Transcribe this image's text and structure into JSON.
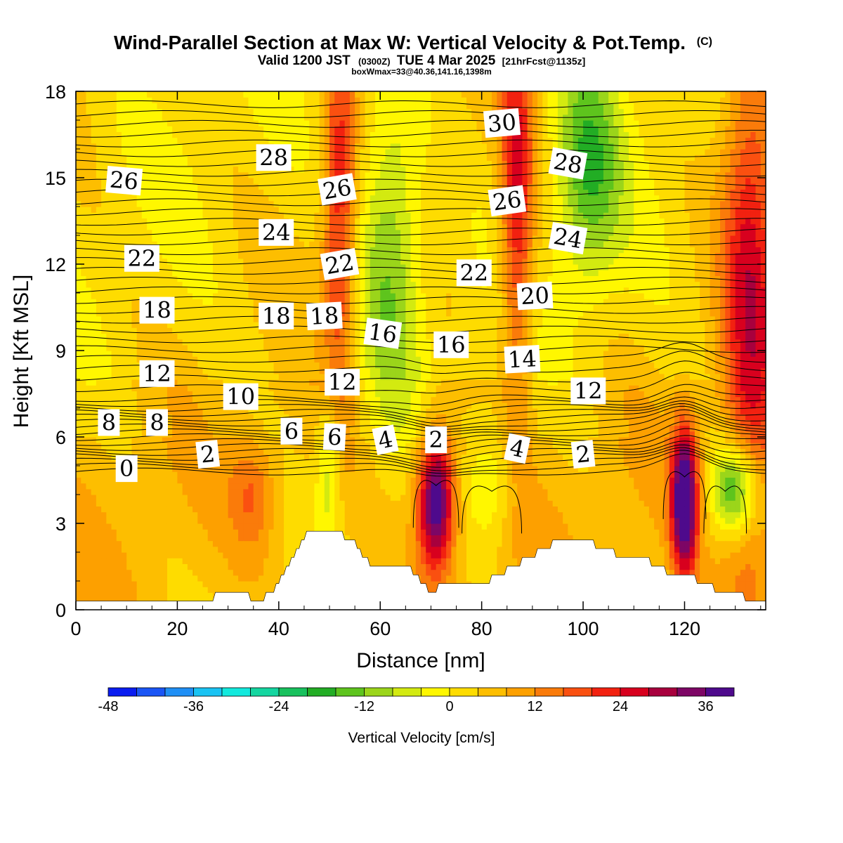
{
  "title": {
    "main": "Wind-Parallel Section at Max W: Vertical Velocity & Pot.Temp.",
    "copyright": "(C)",
    "valid_prefix": "Valid 1200 JST",
    "valid_utc": "(0300Z)",
    "valid_date": "TUE 4 Mar 2025",
    "forecast": "[21hrFcst@1135z]",
    "box_info": "boxWmax=33@40.36,141.16,1398m"
  },
  "colors": {
    "bin_colors": [
      "#0a1cf0",
      "#1a55f5",
      "#1f8ff5",
      "#19c3f3",
      "#12e9dd",
      "#14d6a0",
      "#18c15d",
      "#22ad24",
      "#5ec41d",
      "#9bd51a",
      "#d3ea10",
      "#fff700",
      "#fedc00",
      "#fdbe00",
      "#fda000",
      "#fa7b0a",
      "#fa5010",
      "#f22110",
      "#d8001e",
      "#a8003d",
      "#7d0665",
      "#4e0a8c"
    ],
    "terrain": "#ffffff",
    "contour": "#000000"
  },
  "chart_data": {
    "type": "heatmap",
    "title": "Wind-Parallel Section at Max W: Vertical Velocity & Pot.Temp.",
    "xlabel": "Distance [nm]",
    "ylabel": "Height [Kft MSL]",
    "xlim": [
      0,
      136
    ],
    "ylim": [
      0,
      18
    ],
    "x_ticks": [
      0,
      20,
      40,
      60,
      80,
      100,
      120
    ],
    "y_ticks": [
      0,
      3,
      6,
      9,
      12,
      15,
      18
    ],
    "colorbar": {
      "label": "Vertical Velocity [cm/s]",
      "bounds": [
        -48,
        40
      ],
      "bin_width": 4,
      "tick_values": [
        -48,
        -36,
        -24,
        -12,
        0,
        12,
        24,
        36
      ],
      "tick_labels": [
        "-48",
        "-36",
        "-24",
        "-12",
        "0",
        "12",
        "24",
        "36"
      ]
    },
    "vertical_velocity_features": [
      {
        "x": 71,
        "y": 3.8,
        "w_max": 38,
        "sx": 2.6,
        "sy": 1.7
      },
      {
        "x": 120,
        "y": 3.8,
        "w_max": 40,
        "sx": 1.8,
        "sy": 1.8
      },
      {
        "x": 52,
        "y": 14,
        "w_max": 20,
        "sx": 2.3,
        "sy": 5
      },
      {
        "x": 87,
        "y": 14,
        "w_max": 22,
        "sx": 2.3,
        "sy": 5
      },
      {
        "x": 133,
        "y": 11,
        "w_max": 22,
        "sx": 4,
        "sy": 8
      },
      {
        "x": 62,
        "y": 12.5,
        "w_max": -16,
        "sx": 4.5,
        "sy": 4
      },
      {
        "x": 101,
        "y": 15.5,
        "w_max": -17,
        "sx": 4.5,
        "sy": 3
      },
      {
        "x": 130,
        "y": 4.2,
        "w_max": -27,
        "sx": 3.5,
        "sy": 1.2
      },
      {
        "x": 82,
        "y": 4.5,
        "w_max": -9,
        "sx": 3.5,
        "sy": 1.4
      },
      {
        "x": 35,
        "y": 4,
        "w_max": 10,
        "sx": 3,
        "sy": 1.3
      },
      {
        "x": 50,
        "y": 5,
        "w_max": -12,
        "sx": 1.7,
        "sy": 1.8
      }
    ],
    "terrain_profile": {
      "distance_nm": [
        0,
        7,
        13,
        19,
        26,
        29,
        32,
        36,
        39,
        42,
        45,
        48,
        51,
        55,
        58,
        62,
        65,
        68,
        70,
        74,
        78,
        81,
        84,
        87,
        90,
        93,
        97,
        100,
        103,
        107,
        110,
        114,
        117,
        120,
        123,
        127,
        130,
        133,
        136
      ],
      "height_kft": [
        0.32,
        0.32,
        0.32,
        0.32,
        0.32,
        0.62,
        0.62,
        0.32,
        0.62,
        1.62,
        2.55,
        2.85,
        2.85,
        2.3,
        1.55,
        1.55,
        1.55,
        1.0,
        0.62,
        1.0,
        1.0,
        1.0,
        1.3,
        1.55,
        1.9,
        2.2,
        2.5,
        2.5,
        2.2,
        1.9,
        1.9,
        1.6,
        1.3,
        1.3,
        1.0,
        0.62,
        0.62,
        0.32,
        0.32
      ]
    },
    "potential_temperature_labels": [
      {
        "text": "0",
        "x": 10,
        "y": 4.9,
        "rot": 0
      },
      {
        "text": "2",
        "x": 26,
        "y": 5.4,
        "rot": -6
      },
      {
        "text": "6",
        "x": 42.5,
        "y": 6.2,
        "rot": 0
      },
      {
        "text": "6",
        "x": 51,
        "y": 6.0,
        "rot": 3
      },
      {
        "text": "4",
        "x": 61,
        "y": 5.9,
        "rot": -12
      },
      {
        "text": "2",
        "x": 71,
        "y": 5.9,
        "rot": 0
      },
      {
        "text": "4",
        "x": 87,
        "y": 5.6,
        "rot": 12
      },
      {
        "text": "2",
        "x": 100,
        "y": 5.4,
        "rot": -6
      },
      {
        "text": "8",
        "x": 6.5,
        "y": 6.5,
        "rot": 0
      },
      {
        "text": "8",
        "x": 16,
        "y": 6.5,
        "rot": 0
      },
      {
        "text": "10",
        "x": 32.5,
        "y": 7.4,
        "rot": 0
      },
      {
        "text": "12",
        "x": 16,
        "y": 8.2,
        "rot": 0
      },
      {
        "text": "12",
        "x": 52.5,
        "y": 7.9,
        "rot": 0
      },
      {
        "text": "12",
        "x": 101,
        "y": 7.6,
        "rot": 0
      },
      {
        "text": "14",
        "x": 88,
        "y": 8.7,
        "rot": -3
      },
      {
        "text": "16",
        "x": 60.5,
        "y": 9.6,
        "rot": 8
      },
      {
        "text": "16",
        "x": 74,
        "y": 9.2,
        "rot": 0
      },
      {
        "text": "18",
        "x": 16,
        "y": 10.4,
        "rot": 0
      },
      {
        "text": "18",
        "x": 39.5,
        "y": 10.2,
        "rot": 0
      },
      {
        "text": "18",
        "x": 49,
        "y": 10.2,
        "rot": -3
      },
      {
        "text": "20",
        "x": 90.5,
        "y": 10.9,
        "rot": -3
      },
      {
        "text": "22",
        "x": 13,
        "y": 12.2,
        "rot": 0
      },
      {
        "text": "22",
        "x": 52,
        "y": 12.0,
        "rot": -10
      },
      {
        "text": "22",
        "x": 78.5,
        "y": 11.7,
        "rot": 0
      },
      {
        "text": "24",
        "x": 39.5,
        "y": 13.1,
        "rot": 0
      },
      {
        "text": "24",
        "x": 97,
        "y": 12.9,
        "rot": 10
      },
      {
        "text": "26",
        "x": 9.5,
        "y": 14.9,
        "rot": 5
      },
      {
        "text": "26",
        "x": 51.5,
        "y": 14.6,
        "rot": -10
      },
      {
        "text": "26",
        "x": 85,
        "y": 14.2,
        "rot": -8
      },
      {
        "text": "28",
        "x": 39,
        "y": 15.7,
        "rot": 0
      },
      {
        "text": "28",
        "x": 97,
        "y": 15.5,
        "rot": 10
      },
      {
        "text": "30",
        "x": 84,
        "y": 16.9,
        "rot": -5
      }
    ]
  }
}
